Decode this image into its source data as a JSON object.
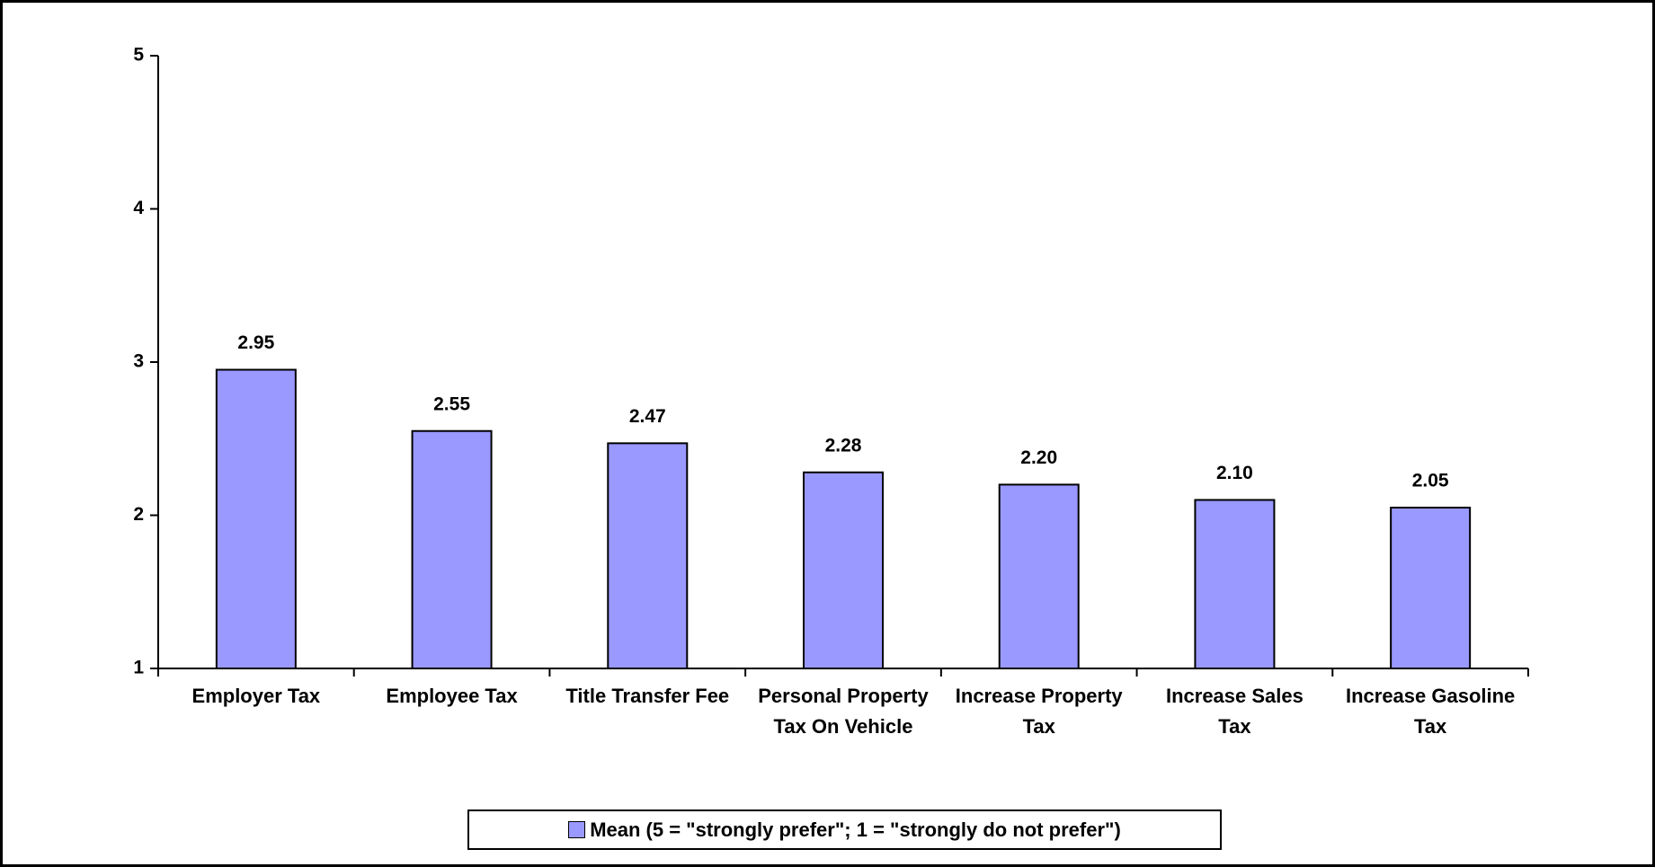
{
  "chart_data": {
    "type": "bar",
    "categories": [
      "Employer Tax",
      "Employee Tax",
      "Title Transfer Fee",
      "Personal Property Tax On Vehicle",
      "Increase Property Tax",
      "Increase Sales Tax",
      "Increase Gasoline Tax"
    ],
    "series": [
      {
        "name": "Mean (5 = \"strongly prefer\"; 1 = \"strongly do not prefer\")",
        "color": "#9999ff",
        "values": [
          2.95,
          2.55,
          2.47,
          2.28,
          2.2,
          2.1,
          2.05
        ],
        "value_labels": [
          "2.95",
          "2.55",
          "2.47",
          "2.28",
          "2.20",
          "2.10",
          "2.05"
        ]
      }
    ],
    "ylim": [
      1,
      5
    ],
    "yticks": [
      1,
      2,
      3,
      4,
      5
    ],
    "grid": false,
    "legend": "bottom"
  }
}
